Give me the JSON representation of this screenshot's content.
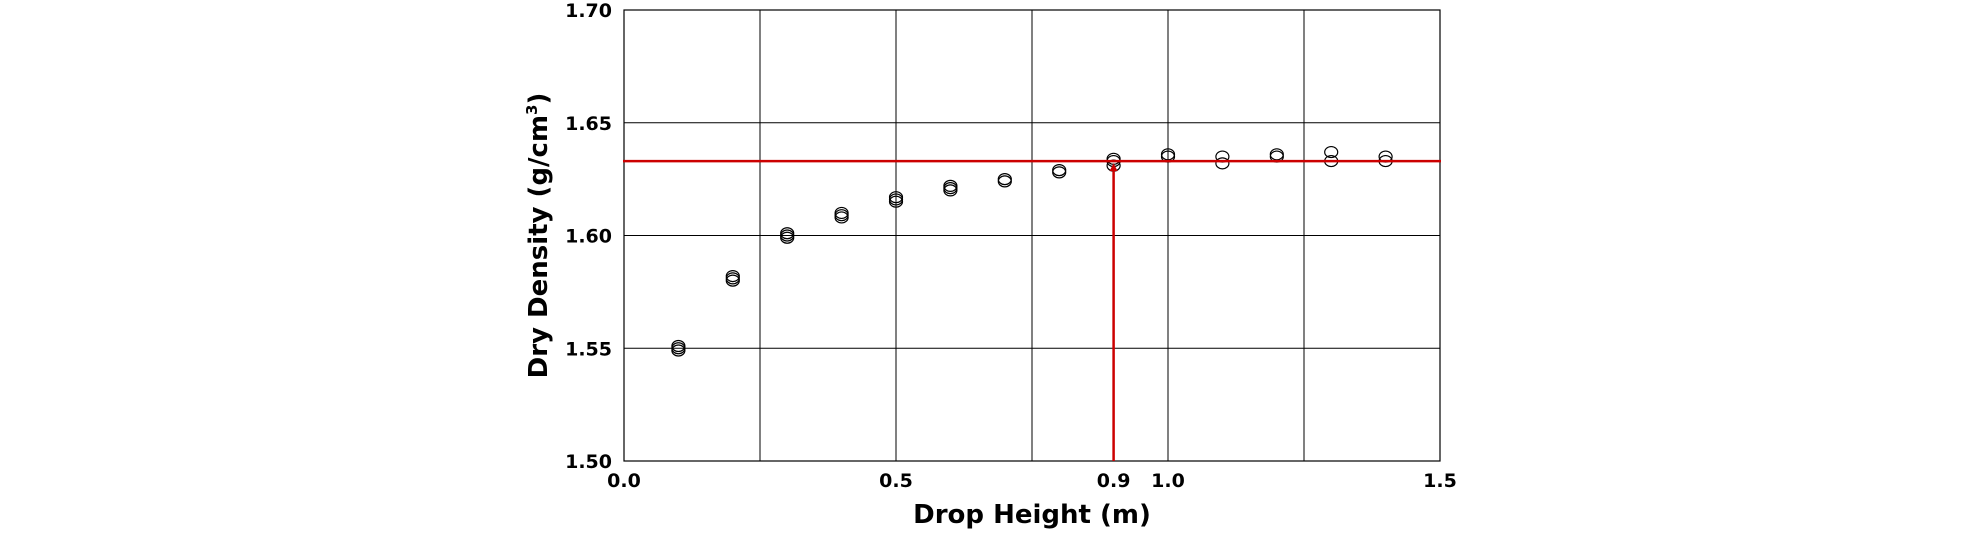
{
  "chart_data": {
    "type": "scatter",
    "xlabel": "Drop Height (m)",
    "ylabel": {
      "main": "Dry Density (g/cm",
      "superscript": "3",
      "close": ")"
    },
    "xlim": [
      0.0,
      1.5
    ],
    "ylim": [
      1.5,
      1.7
    ],
    "x_ticks": [
      "0.0",
      "0.5",
      "0.9",
      "1.0",
      "1.5"
    ],
    "y_ticks": [
      "1.50",
      "1.55",
      "1.60",
      "1.65",
      "1.70"
    ],
    "grid": true,
    "grid_x": [
      0.25,
      0.5,
      0.75,
      1.0,
      1.25
    ],
    "grid_y": [
      1.55,
      1.6,
      1.65
    ],
    "points": [
      {
        "x": 0.1,
        "y": 1.549
      },
      {
        "x": 0.1,
        "y": 1.55
      },
      {
        "x": 0.1,
        "y": 1.551
      },
      {
        "x": 0.2,
        "y": 1.58
      },
      {
        "x": 0.2,
        "y": 1.581
      },
      {
        "x": 0.2,
        "y": 1.582
      },
      {
        "x": 0.3,
        "y": 1.599
      },
      {
        "x": 0.3,
        "y": 1.6
      },
      {
        "x": 0.3,
        "y": 1.601
      },
      {
        "x": 0.4,
        "y": 1.608
      },
      {
        "x": 0.4,
        "y": 1.609
      },
      {
        "x": 0.4,
        "y": 1.61
      },
      {
        "x": 0.5,
        "y": 1.615
      },
      {
        "x": 0.5,
        "y": 1.616
      },
      {
        "x": 0.5,
        "y": 1.617
      },
      {
        "x": 0.6,
        "y": 1.62
      },
      {
        "x": 0.6,
        "y": 1.621
      },
      {
        "x": 0.6,
        "y": 1.622
      },
      {
        "x": 0.7,
        "y": 1.624
      },
      {
        "x": 0.7,
        "y": 1.625
      },
      {
        "x": 0.8,
        "y": 1.628
      },
      {
        "x": 0.8,
        "y": 1.629
      },
      {
        "x": 0.9,
        "y": 1.631
      },
      {
        "x": 0.9,
        "y": 1.633
      },
      {
        "x": 0.9,
        "y": 1.634
      },
      {
        "x": 1.0,
        "y": 1.635
      },
      {
        "x": 1.0,
        "y": 1.636
      },
      {
        "x": 1.1,
        "y": 1.632
      },
      {
        "x": 1.1,
        "y": 1.635
      },
      {
        "x": 1.2,
        "y": 1.635
      },
      {
        "x": 1.2,
        "y": 1.636
      },
      {
        "x": 1.3,
        "y": 1.633
      },
      {
        "x": 1.3,
        "y": 1.637
      },
      {
        "x": 1.4,
        "y": 1.633
      },
      {
        "x": 1.4,
        "y": 1.635
      }
    ],
    "reference_line": {
      "y": 1.633,
      "x_marker": 0.9,
      "color": "#cc0000"
    },
    "marker_color": "#000000"
  }
}
